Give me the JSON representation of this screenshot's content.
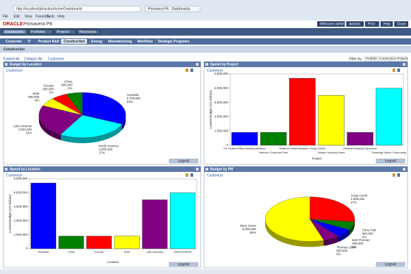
{
  "browser": {
    "url": "http://localhost/p6/action/home/Dashboards",
    "tab_title": "Primavera P6 : Dashboards",
    "menu": [
      "File",
      "Edit",
      "View",
      "Favorites",
      "Tools",
      "Help"
    ]
  },
  "app": {
    "brand": "ORACLE",
    "product": "Primavera P6",
    "nav": [
      "Dashboards",
      "Portfolios",
      "Projects",
      "Resources"
    ],
    "user_links": [
      "Welcome admin",
      "Actions",
      "Print",
      "Help",
      "Close"
    ]
  },
  "tabs": [
    "Corporate",
    "IT",
    "Product R&D",
    "Construction",
    "Energy",
    "Manufacturing",
    "Workflow",
    "Strategic Programs"
  ],
  "active_tab": 3,
  "section": {
    "title": "Construction",
    "links": [
      "Expand All",
      "Collapse All",
      "Customize"
    ],
    "filter_label": "Filter by:",
    "filter_value": "Portfolio: Construction Projects"
  },
  "portlet_links": {
    "customize": "Customize",
    "legend": "Legend"
  },
  "chart_data": [
    {
      "type": "pie",
      "title": "Budget by Location",
      "categories": [
        "Australia",
        "North America",
        "Latin America",
        "India",
        "Europe",
        "China"
      ],
      "values": [
        4700000,
        4000000,
        3500000,
        900000,
        900000,
        900000
      ],
      "value_labels": [
        "4,700,000",
        "4,000,000",
        "3,500,000",
        "900,000",
        "900,000",
        "900,000"
      ],
      "percent_labels": [
        "32%",
        "27%",
        "24%",
        "6%",
        "6%",
        "6%"
      ],
      "colors": [
        "#0000ff",
        "#00ffff",
        "#800080",
        "#ffff00",
        "#ff0000",
        "#008000"
      ]
    },
    {
      "type": "bar",
      "title": "Spend by Project",
      "ylabel": "Current Budget (US Dollars)",
      "xlabel": "Project",
      "categories": [
        "Ctr Central Office Building Addition",
        "Harbour Corporate Park",
        "Harbour Pointe Assisted Living Center",
        "Juniper Nursing Home",
        "Medical Building Expansion",
        "Saratoga Senior Community"
      ],
      "values": [
        900000,
        900000,
        4700000,
        3500000,
        900000,
        4000000
      ],
      "colors": [
        "#0000ff",
        "#008000",
        "#ff0000",
        "#ffff00",
        "#800080",
        "#00ffff"
      ],
      "ylim": [
        0,
        5000000
      ],
      "yticks": [
        0,
        {
          "value": 1000000,
          "label": "1,000,000"
        },
        {
          "value": 2000000,
          "label": "2,000,000"
        },
        {
          "value": 3000000,
          "label": "3,000,000"
        },
        {
          "value": 4000000,
          "label": "4,000,000"
        },
        {
          "value": 5000000,
          "label": "5,000,000"
        }
      ]
    },
    {
      "type": "bar",
      "title": "Spend by Location",
      "ylabel": "Current Budget (US Dollars)",
      "xlabel": "Location",
      "categories": [
        "Australia",
        "China",
        "Europe",
        "India",
        "Latin America",
        "North America"
      ],
      "values": [
        4700000,
        900000,
        900000,
        900000,
        3500000,
        4000000
      ],
      "colors": [
        "#0000ff",
        "#008000",
        "#ff0000",
        "#ffff00",
        "#800080",
        "#00ffff"
      ],
      "ylim": [
        0,
        5000000
      ],
      "yticks": [
        0,
        {
          "value": 1000000,
          "label": "1,000,000"
        },
        {
          "value": 2000000,
          "label": "2,000,000"
        },
        {
          "value": 3000000,
          "label": "3,000,000"
        },
        {
          "value": 4000000,
          "label": "4,000,000"
        },
        {
          "value": 5000000,
          "label": "5,000,000"
        }
      ]
    },
    {
      "type": "pie",
      "title": "Budget by PM",
      "categories": [
        "Jorge Curtis",
        "Chris Folk",
        "Bob Thomas",
        "Thomas Clark",
        "Mary Jones"
      ],
      "values": [
        4000000,
        900000,
        900000,
        900000,
        8200000
      ],
      "value_labels": [
        "4,000,000",
        "900,000",
        "900,000",
        "900,000",
        "8,200,000"
      ],
      "percent_labels": [
        "27%",
        "6%",
        "6%",
        "6%",
        "55%"
      ],
      "colors": [
        "#ff0000",
        "#008000",
        "#0000ff",
        "#800080",
        "#ffff00"
      ]
    }
  ]
}
